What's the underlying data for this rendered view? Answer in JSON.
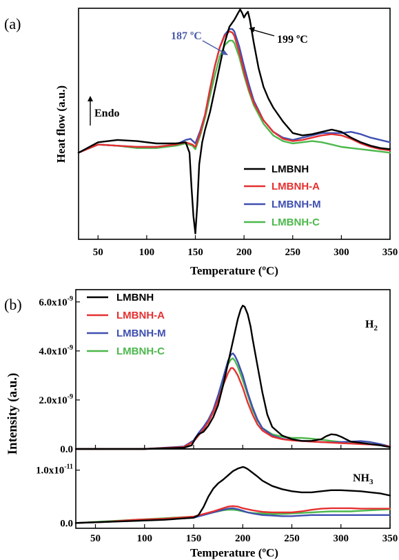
{
  "chart_data": [
    {
      "panel": "(a)",
      "type": "line",
      "xlabel": "Temperature (ºC)",
      "ylabel": "Heat flow (a.u.)",
      "xlim": [
        30,
        350
      ],
      "ylim": [
        -1.0,
        1.0
      ],
      "xticks": [
        50,
        100,
        150,
        200,
        250,
        300,
        350
      ],
      "annotations": [
        {
          "text": "187 ºC",
          "x": 187,
          "color": "#4a5aa8"
        },
        {
          "text": "199 ºC",
          "x": 199,
          "color": "#000000"
        },
        {
          "text": "Endo",
          "color": "#000000"
        }
      ],
      "legend": {
        "placement": "bottom-right"
      },
      "series": [
        {
          "name": "LMBNH",
          "color": "#000000",
          "x": [
            30,
            50,
            70,
            90,
            110,
            130,
            140,
            144,
            146,
            148,
            150,
            152,
            154,
            157,
            160,
            165,
            170,
            175,
            180,
            185,
            190,
            194,
            196,
            198,
            200,
            202,
            204,
            206,
            210,
            215,
            220,
            225,
            230,
            240,
            250,
            260,
            270,
            280,
            290,
            300,
            310,
            320,
            330,
            340,
            350
          ],
          "y": [
            -0.25,
            -0.16,
            -0.14,
            -0.15,
            -0.17,
            -0.17,
            -0.16,
            -0.25,
            -0.55,
            -0.8,
            -0.95,
            -0.7,
            -0.35,
            -0.16,
            -0.05,
            0.1,
            0.3,
            0.5,
            0.7,
            0.84,
            0.9,
            0.96,
            0.99,
            0.96,
            0.92,
            0.95,
            0.97,
            0.9,
            0.7,
            0.48,
            0.32,
            0.22,
            0.14,
            0.02,
            -0.08,
            -0.1,
            -0.09,
            -0.07,
            -0.05,
            -0.07,
            -0.12,
            -0.16,
            -0.19,
            -0.21,
            -0.22
          ]
        },
        {
          "name": "LMBNH-A",
          "color": "#e53030",
          "x": [
            30,
            50,
            70,
            90,
            110,
            130,
            140,
            147,
            150,
            155,
            160,
            165,
            170,
            175,
            180,
            185,
            188,
            190,
            195,
            200,
            205,
            210,
            220,
            230,
            240,
            250,
            260,
            270,
            280,
            290,
            300,
            310,
            320,
            330,
            340,
            350
          ],
          "y": [
            -0.25,
            -0.18,
            -0.19,
            -0.2,
            -0.2,
            -0.18,
            -0.16,
            -0.18,
            -0.2,
            -0.08,
            0.08,
            0.3,
            0.5,
            0.66,
            0.76,
            0.8,
            0.79,
            0.76,
            0.62,
            0.45,
            0.3,
            0.18,
            0.03,
            -0.07,
            -0.13,
            -0.15,
            -0.14,
            -0.12,
            -0.1,
            -0.09,
            -0.1,
            -0.13,
            -0.17,
            -0.2,
            -0.22,
            -0.23
          ]
        },
        {
          "name": "LMBNH-M",
          "color": "#3f4fb0",
          "x": [
            30,
            50,
            70,
            90,
            110,
            130,
            140,
            145,
            150,
            155,
            160,
            165,
            170,
            175,
            180,
            185,
            188,
            190,
            195,
            200,
            205,
            210,
            220,
            230,
            240,
            250,
            260,
            270,
            280,
            290,
            300,
            310,
            320,
            330,
            340,
            350
          ],
          "y": [
            -0.25,
            -0.18,
            -0.19,
            -0.2,
            -0.2,
            -0.18,
            -0.14,
            -0.13,
            -0.17,
            -0.06,
            0.08,
            0.3,
            0.5,
            0.66,
            0.77,
            0.82,
            0.82,
            0.8,
            0.67,
            0.5,
            0.34,
            0.2,
            0.03,
            -0.07,
            -0.12,
            -0.14,
            -0.12,
            -0.1,
            -0.08,
            -0.08,
            -0.08,
            -0.07,
            -0.09,
            -0.12,
            -0.14,
            -0.16
          ]
        },
        {
          "name": "LMBNH-C",
          "color": "#4cb84c",
          "x": [
            30,
            50,
            70,
            90,
            110,
            130,
            140,
            147,
            150,
            155,
            160,
            165,
            170,
            175,
            180,
            185,
            188,
            190,
            195,
            200,
            205,
            210,
            220,
            230,
            240,
            250,
            260,
            270,
            280,
            290,
            300,
            310,
            320,
            330,
            340,
            350
          ],
          "y": [
            -0.25,
            -0.18,
            -0.19,
            -0.21,
            -0.21,
            -0.19,
            -0.17,
            -0.19,
            -0.22,
            -0.1,
            0.05,
            0.24,
            0.42,
            0.58,
            0.68,
            0.72,
            0.72,
            0.7,
            0.58,
            0.42,
            0.28,
            0.16,
            0.0,
            -0.1,
            -0.15,
            -0.17,
            -0.16,
            -0.15,
            -0.16,
            -0.18,
            -0.2,
            -0.21,
            -0.22,
            -0.23,
            -0.24,
            -0.25
          ]
        }
      ]
    },
    {
      "panel": "(b)",
      "type": "line",
      "ylabel": "Intensity (a.u.)",
      "xlim": [
        30,
        350
      ],
      "ylim": [
        0,
        6.5e-09
      ],
      "yticks": [
        0,
        2e-09,
        4e-09,
        6e-09
      ],
      "yticklabels": [
        "0.0",
        "2.0x10-9",
        "4.0x10-9",
        "6.0x10-9"
      ],
      "annotation": "H2",
      "legend": {
        "placement": "top-left"
      },
      "series": [
        {
          "name": "LMBNH",
          "color": "#000000",
          "x": [
            30,
            100,
            140,
            148,
            152,
            155,
            160,
            165,
            170,
            175,
            180,
            185,
            190,
            195,
            198,
            200,
            202,
            205,
            208,
            210,
            215,
            220,
            225,
            230,
            240,
            250,
            260,
            270,
            280,
            285,
            290,
            295,
            300,
            305,
            310,
            320,
            330,
            340,
            350
          ],
          "y": [
            0,
            0,
            0.05,
            0.15,
            0.45,
            0.6,
            0.7,
            0.95,
            1.3,
            1.8,
            2.6,
            3.5,
            4.4,
            5.3,
            5.7,
            5.85,
            5.8,
            5.5,
            5.0,
            4.5,
            3.4,
            2.3,
            1.4,
            0.9,
            0.55,
            0.4,
            0.33,
            0.33,
            0.4,
            0.52,
            0.6,
            0.58,
            0.5,
            0.4,
            0.3,
            0.25,
            0.2,
            0.15,
            0.07
          ]
        },
        {
          "name": "LMBNH-A",
          "color": "#e53030",
          "x": [
            30,
            100,
            140,
            150,
            155,
            160,
            165,
            170,
            175,
            180,
            185,
            188,
            190,
            192,
            195,
            200,
            205,
            210,
            215,
            220,
            230,
            240,
            250,
            260,
            270,
            280,
            290,
            300,
            310,
            320,
            330,
            340,
            350
          ],
          "y": [
            0,
            0,
            0.08,
            0.3,
            0.55,
            0.8,
            1.1,
            1.5,
            2.0,
            2.6,
            3.1,
            3.3,
            3.3,
            3.2,
            3.0,
            2.5,
            1.9,
            1.4,
            1.0,
            0.75,
            0.5,
            0.4,
            0.35,
            0.32,
            0.3,
            0.28,
            0.26,
            0.24,
            0.22,
            0.2,
            0.18,
            0.15,
            0.1
          ]
        },
        {
          "name": "LMBNH-M",
          "color": "#3f4fb0",
          "x": [
            30,
            100,
            140,
            150,
            155,
            160,
            165,
            170,
            175,
            180,
            185,
            188,
            190,
            192,
            195,
            200,
            205,
            210,
            215,
            220,
            230,
            240,
            250,
            260,
            270,
            280,
            290,
            300,
            310,
            320,
            330,
            340,
            350
          ],
          "y": [
            0,
            0,
            0.1,
            0.35,
            0.65,
            0.9,
            1.2,
            1.6,
            2.2,
            2.9,
            3.6,
            3.85,
            3.9,
            3.8,
            3.55,
            3.0,
            2.3,
            1.7,
            1.2,
            0.85,
            0.55,
            0.42,
            0.36,
            0.33,
            0.3,
            0.28,
            0.27,
            0.28,
            0.3,
            0.32,
            0.28,
            0.2,
            0.1
          ]
        },
        {
          "name": "LMBNH-C",
          "color": "#4cb84c",
          "x": [
            30,
            100,
            140,
            150,
            155,
            160,
            165,
            170,
            175,
            180,
            185,
            188,
            190,
            192,
            195,
            200,
            205,
            210,
            215,
            220,
            230,
            240,
            250,
            260,
            270,
            280,
            290,
            300,
            310,
            320,
            330,
            340,
            350
          ],
          "y": [
            0,
            0,
            0.08,
            0.32,
            0.6,
            0.85,
            1.15,
            1.55,
            2.1,
            2.8,
            3.45,
            3.65,
            3.7,
            3.6,
            3.35,
            2.8,
            2.2,
            1.6,
            1.15,
            0.85,
            0.6,
            0.5,
            0.45,
            0.45,
            0.42,
            0.38,
            0.33,
            0.28,
            0.25,
            0.22,
            0.2,
            0.15,
            0.1
          ]
        }
      ]
    },
    {
      "panel": "(b) lower",
      "type": "line",
      "xlabel": "Temperature (ºC)",
      "xlim": [
        30,
        350
      ],
      "ylim": [
        -1e-12,
        1.4e-11
      ],
      "xticks": [
        50,
        100,
        150,
        200,
        250,
        300,
        350
      ],
      "yticks": [
        0,
        1e-11
      ],
      "yticklabels": [
        "0.0",
        "1.0x10-11"
      ],
      "annotation": "NH3",
      "series": [
        {
          "name": "LMBNH",
          "color": "#000000",
          "x": [
            30,
            60,
            90,
            120,
            150,
            155,
            160,
            165,
            170,
            175,
            180,
            185,
            190,
            195,
            200,
            202,
            205,
            210,
            215,
            220,
            230,
            240,
            250,
            260,
            270,
            280,
            290,
            300,
            310,
            320,
            330,
            340,
            350
          ],
          "y": [
            0.0,
            0.02,
            0.04,
            0.06,
            0.1,
            0.15,
            0.3,
            0.5,
            0.65,
            0.75,
            0.82,
            0.9,
            0.98,
            1.03,
            1.06,
            1.05,
            1.02,
            0.95,
            0.88,
            0.8,
            0.7,
            0.64,
            0.6,
            0.58,
            0.58,
            0.6,
            0.62,
            0.62,
            0.61,
            0.6,
            0.58,
            0.56,
            0.52
          ]
        },
        {
          "name": "LMBNH-A",
          "color": "#e53030",
          "x": [
            30,
            60,
            90,
            120,
            150,
            160,
            170,
            180,
            185,
            190,
            195,
            200,
            205,
            210,
            220,
            230,
            240,
            250,
            260,
            270,
            280,
            290,
            300,
            310,
            320,
            330,
            340,
            350
          ],
          "y": [
            0.0,
            0.02,
            0.06,
            0.08,
            0.12,
            0.17,
            0.22,
            0.28,
            0.31,
            0.32,
            0.31,
            0.28,
            0.26,
            0.24,
            0.21,
            0.2,
            0.2,
            0.2,
            0.22,
            0.25,
            0.27,
            0.28,
            0.28,
            0.28,
            0.27,
            0.27,
            0.27,
            0.27
          ]
        },
        {
          "name": "LMBNH-M",
          "color": "#3f4fb0",
          "x": [
            30,
            60,
            90,
            120,
            150,
            160,
            170,
            180,
            185,
            190,
            195,
            200,
            205,
            210,
            220,
            230,
            240,
            250,
            260,
            270,
            280,
            290,
            300,
            310,
            320,
            330,
            340,
            350
          ],
          "y": [
            0.0,
            0.02,
            0.05,
            0.07,
            0.1,
            0.15,
            0.2,
            0.25,
            0.27,
            0.28,
            0.26,
            0.23,
            0.2,
            0.18,
            0.15,
            0.14,
            0.13,
            0.13,
            0.14,
            0.15,
            0.15,
            0.15,
            0.15,
            0.15,
            0.15,
            0.15,
            0.15,
            0.15
          ]
        },
        {
          "name": "LMBNH-C",
          "color": "#4cb84c",
          "x": [
            30,
            60,
            90,
            120,
            150,
            160,
            170,
            180,
            185,
            190,
            195,
            200,
            205,
            210,
            220,
            230,
            240,
            250,
            260,
            270,
            280,
            290,
            300,
            310,
            320,
            330,
            340,
            350
          ],
          "y": [
            0.0,
            0.03,
            0.06,
            0.09,
            0.12,
            0.16,
            0.2,
            0.24,
            0.25,
            0.25,
            0.24,
            0.22,
            0.2,
            0.19,
            0.18,
            0.17,
            0.17,
            0.18,
            0.19,
            0.2,
            0.21,
            0.22,
            0.22,
            0.22,
            0.23,
            0.24,
            0.25,
            0.26
          ]
        }
      ]
    }
  ]
}
